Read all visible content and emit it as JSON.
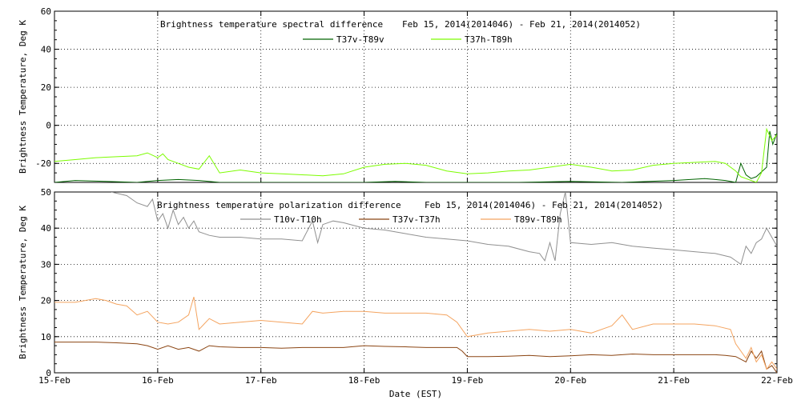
{
  "chart_data": [
    {
      "type": "line",
      "title": "Brightness temperature spectral difference",
      "date_range": "Feb 15, 2014(2014046) - Feb 21, 2014(2014052)",
      "ylabel": "Brightness Temperature, Deg K",
      "ylim": [
        -30,
        60
      ],
      "yticks": [
        -20,
        0,
        20,
        40,
        60
      ],
      "xlim": [
        0,
        7
      ],
      "grid": true,
      "legend_position": "top-center",
      "series": [
        {
          "name": "T37v-T89v",
          "color": "#006400",
          "x": [
            0,
            0.2,
            0.5,
            0.8,
            1.0,
            1.2,
            1.4,
            1.6,
            2.0,
            2.5,
            3.0,
            3.3,
            3.6,
            4.0,
            4.5,
            5.0,
            5.5,
            6.0,
            6.3,
            6.5,
            6.6,
            6.65,
            6.7,
            6.75,
            6.8,
            6.9,
            6.93,
            6.96,
            7.0
          ],
          "y": [
            -30,
            -29,
            -29.5,
            -30,
            -29,
            -28.5,
            -29,
            -30,
            -30,
            -30,
            -30,
            -29.5,
            -30,
            -30,
            -30,
            -29.5,
            -30,
            -29,
            -28,
            -29,
            -30,
            -20,
            -26,
            -28,
            -27,
            -22,
            -3,
            -10,
            -4
          ]
        },
        {
          "name": "T37h-T89h",
          "color": "#7CFC00",
          "x": [
            0,
            0.2,
            0.4,
            0.6,
            0.8,
            0.9,
            1.0,
            1.05,
            1.1,
            1.2,
            1.3,
            1.4,
            1.5,
            1.6,
            1.8,
            2.0,
            2.2,
            2.4,
            2.6,
            2.8,
            3.0,
            3.2,
            3.4,
            3.6,
            3.8,
            4.0,
            4.2,
            4.4,
            4.6,
            4.8,
            5.0,
            5.2,
            5.4,
            5.6,
            5.8,
            6.0,
            6.2,
            6.4,
            6.5,
            6.6,
            6.65,
            6.7,
            6.8,
            6.85,
            6.9,
            6.95,
            7.0
          ],
          "y": [
            -19,
            -18,
            -17,
            -16.5,
            -16,
            -14.5,
            -17,
            -15,
            -18,
            -20,
            -22,
            -23,
            -16,
            -25,
            -23.5,
            -25,
            -25.5,
            -26,
            -26.5,
            -25.5,
            -22,
            -20.5,
            -20,
            -21,
            -24,
            -25.5,
            -25,
            -24,
            -23.5,
            -22,
            -20.5,
            -22,
            -24,
            -23.5,
            -21,
            -20,
            -19.5,
            -19,
            -20,
            -24,
            -27,
            -28,
            -30,
            -25,
            -2,
            -8,
            -5
          ]
        }
      ]
    },
    {
      "type": "line",
      "title": "Brightness temperature polarization difference",
      "date_range": "Feb 15, 2014(2014046) - Feb 21, 2014(2014052)",
      "xlabel": "Date (EST)",
      "ylabel": "Brightness Temperature, Deg K",
      "ylim": [
        0,
        50
      ],
      "yticks": [
        0,
        10,
        20,
        30,
        40,
        50
      ],
      "xlim": [
        0,
        7
      ],
      "xticks": [
        "15-Feb",
        "16-Feb",
        "17-Feb",
        "18-Feb",
        "19-Feb",
        "20-Feb",
        "21-Feb",
        "22-Feb"
      ],
      "grid": true,
      "legend_position": "top-center",
      "series": [
        {
          "name": "T10v-T10h",
          "color": "#909090",
          "x": [
            0.55,
            0.7,
            0.8,
            0.9,
            0.95,
            1.0,
            1.05,
            1.1,
            1.15,
            1.2,
            1.25,
            1.3,
            1.35,
            1.4,
            1.5,
            1.6,
            1.8,
            2.0,
            2.2,
            2.4,
            2.5,
            2.55,
            2.6,
            2.7,
            2.8,
            3.0,
            3.2,
            3.4,
            3.6,
            3.8,
            4.0,
            4.2,
            4.4,
            4.6,
            4.7,
            4.75,
            4.8,
            4.85,
            4.9,
            4.95,
            5.0,
            5.2,
            5.4,
            5.6,
            5.8,
            6.0,
            6.2,
            6.4,
            6.55,
            6.6,
            6.65,
            6.7,
            6.75,
            6.8,
            6.85,
            6.9,
            7.0
          ],
          "y": [
            50,
            49,
            47,
            46,
            48,
            42,
            44,
            40,
            45,
            41,
            43,
            40,
            42,
            39,
            38,
            37.5,
            37.5,
            37,
            37,
            36.5,
            42,
            36,
            41,
            42,
            41.5,
            40,
            39.5,
            38.5,
            37.5,
            37,
            36.5,
            35.5,
            35,
            33.5,
            33,
            31,
            36,
            31,
            44,
            50,
            36,
            35.5,
            36,
            35,
            34.5,
            34,
            33.5,
            33,
            32,
            31,
            30,
            35,
            33,
            36,
            37,
            40,
            35
          ]
        },
        {
          "name": "T37v-T37h",
          "color": "#8B4513",
          "x": [
            0,
            0.2,
            0.4,
            0.6,
            0.8,
            0.9,
            1.0,
            1.1,
            1.2,
            1.3,
            1.4,
            1.5,
            1.6,
            1.8,
            2.0,
            2.2,
            2.4,
            2.6,
            2.8,
            3.0,
            3.2,
            3.4,
            3.6,
            3.9,
            3.95,
            4.0,
            4.2,
            4.4,
            4.6,
            4.8,
            5.0,
            5.2,
            5.4,
            5.6,
            5.8,
            6.0,
            6.2,
            6.4,
            6.5,
            6.6,
            6.7,
            6.75,
            6.8,
            6.85,
            6.9,
            6.95,
            7.0
          ],
          "y": [
            8.5,
            8.5,
            8.5,
            8.3,
            8,
            7.5,
            6.5,
            7.5,
            6.5,
            7,
            6,
            7.5,
            7.2,
            7,
            7,
            6.8,
            7,
            7,
            7,
            7.5,
            7.3,
            7.2,
            7,
            7,
            6,
            4.5,
            4.5,
            4.6,
            4.8,
            4.5,
            4.7,
            5,
            4.8,
            5.2,
            5,
            5,
            5,
            5,
            4.8,
            4.5,
            3,
            6,
            4,
            6,
            1,
            2,
            0
          ]
        },
        {
          "name": "T89v-T89h",
          "color": "#F4A460",
          "x": [
            0,
            0.2,
            0.4,
            0.5,
            0.6,
            0.7,
            0.8,
            0.9,
            1.0,
            1.1,
            1.2,
            1.3,
            1.35,
            1.4,
            1.5,
            1.6,
            1.8,
            2.0,
            2.2,
            2.4,
            2.5,
            2.6,
            2.8,
            3.0,
            3.2,
            3.4,
            3.6,
            3.8,
            3.9,
            4.0,
            4.2,
            4.4,
            4.6,
            4.8,
            5.0,
            5.2,
            5.4,
            5.5,
            5.6,
            5.8,
            6.0,
            6.2,
            6.4,
            6.55,
            6.6,
            6.7,
            6.75,
            6.8,
            6.85,
            6.9,
            6.95,
            7.0
          ],
          "y": [
            19.5,
            19.5,
            20.5,
            20,
            19,
            18.5,
            16,
            17,
            14,
            13.5,
            14,
            16,
            21,
            12,
            15,
            13.5,
            14,
            14.5,
            14,
            13.5,
            17,
            16.5,
            17,
            17,
            16.5,
            16.5,
            16.5,
            16,
            14,
            10,
            11,
            11.5,
            12,
            11.5,
            12,
            11,
            13,
            16,
            12,
            13.5,
            13.5,
            13.5,
            13,
            12,
            8,
            4,
            7,
            3,
            5,
            1,
            3,
            1
          ]
        }
      ]
    }
  ]
}
